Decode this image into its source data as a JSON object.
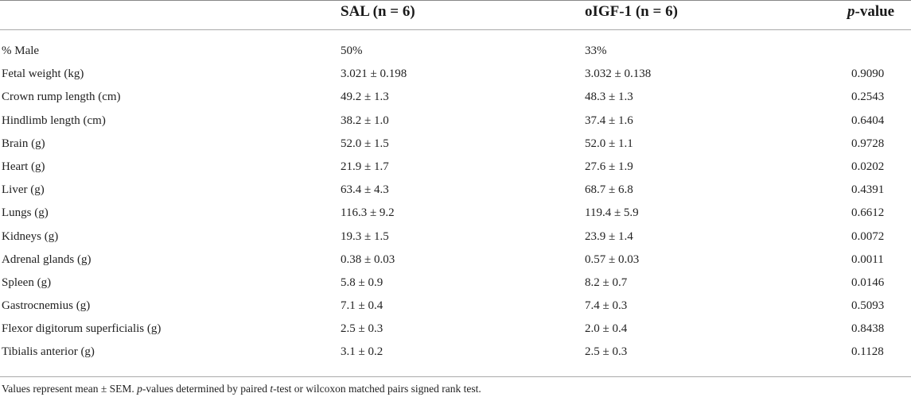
{
  "table": {
    "columns": {
      "label": "",
      "sal": "SAL (n = 6)",
      "oigf": "oIGF-1 (n = 6)",
      "p_italic": "p",
      "p_rest": "-value"
    },
    "rows": [
      {
        "label": "% Male",
        "sal": "50%",
        "oigf": "33%",
        "p": ""
      },
      {
        "label": "Fetal weight (kg)",
        "sal": "3.021 ± 0.198",
        "oigf": "3.032 ± 0.138",
        "p": "0.9090"
      },
      {
        "label": "Crown rump length (cm)",
        "sal": "49.2 ± 1.3",
        "oigf": "48.3 ± 1.3",
        "p": "0.2543"
      },
      {
        "label": "Hindlimb length (cm)",
        "sal": "38.2 ± 1.0",
        "oigf": "37.4 ± 1.6",
        "p": "0.6404"
      },
      {
        "label": "Brain (g)",
        "sal": "52.0 ± 1.5",
        "oigf": "52.0 ± 1.1",
        "p": "0.9728"
      },
      {
        "label": "Heart (g)",
        "sal": "21.9 ± 1.7",
        "oigf": "27.6 ± 1.9",
        "p": "0.0202"
      },
      {
        "label": "Liver (g)",
        "sal": "63.4 ± 4.3",
        "oigf": "68.7 ± 6.8",
        "p": "0.4391"
      },
      {
        "label": "Lungs (g)",
        "sal": "116.3 ± 9.2",
        "oigf": "119.4 ± 5.9",
        "p": "0.6612"
      },
      {
        "label": "Kidneys (g)",
        "sal": "19.3 ± 1.5",
        "oigf": "23.9 ± 1.4",
        "p": "0.0072"
      },
      {
        "label": "Adrenal glands (g)",
        "sal": "0.38 ± 0.03",
        "oigf": "0.57 ± 0.03",
        "p": "0.0011"
      },
      {
        "label": "Spleen (g)",
        "sal": "5.8 ± 0.9",
        "oigf": "8.2 ± 0.7",
        "p": "0.0146"
      },
      {
        "label": "Gastrocnemius (g)",
        "sal": "7.1 ± 0.4",
        "oigf": "7.4 ± 0.3",
        "p": "0.5093"
      },
      {
        "label": "Flexor digitorum superficialis (g)",
        "sal": "2.5 ± 0.3",
        "oigf": "2.0 ± 0.4",
        "p": "0.8438"
      },
      {
        "label": "Tibialis anterior (g)",
        "sal": "3.1 ± 0.2",
        "oigf": "2.5 ± 0.3",
        "p": "0.1128"
      }
    ]
  },
  "footnote": {
    "part1": "Values represent mean ± SEM. ",
    "p_italic": "p",
    "part2": "-values determined by paired ",
    "t_italic": "t",
    "part3": "-test or wilcoxon matched pairs signed rank test."
  }
}
